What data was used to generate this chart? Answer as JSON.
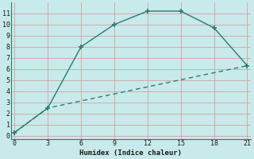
{
  "line1_x": [
    0,
    3,
    6,
    9,
    12,
    15,
    18,
    21
  ],
  "line1_y": [
    0.3,
    2.5,
    8.0,
    10.0,
    11.2,
    11.2,
    9.7,
    6.3
  ],
  "line2_x": [
    0,
    3,
    21
  ],
  "line2_y": [
    0.3,
    2.5,
    6.3
  ],
  "line_color": "#2a7c6e",
  "bg_color": "#c8eaea",
  "grid_color": "#d4a0a0",
  "xlabel": "Humidex (Indice chaleur)",
  "xlim": [
    -0.3,
    21.3
  ],
  "ylim": [
    -0.3,
    12.0
  ],
  "xticks": [
    0,
    3,
    6,
    9,
    12,
    15,
    18,
    21
  ],
  "yticks": [
    0,
    1,
    2,
    3,
    4,
    5,
    6,
    7,
    8,
    9,
    10,
    11
  ],
  "markersize": 4,
  "linewidth": 1.0
}
